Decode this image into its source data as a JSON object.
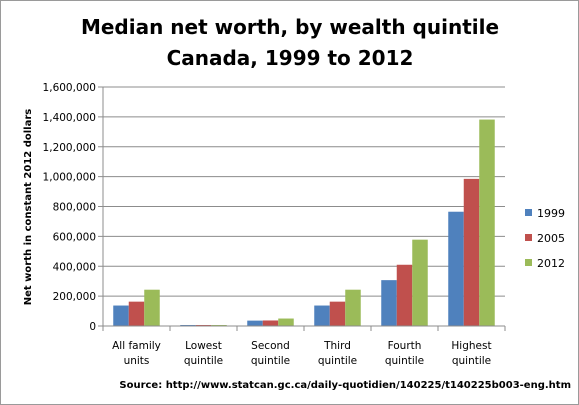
{
  "chart_data": {
    "type": "bar",
    "title_lines": [
      "Median net worth,  by wealth quintile",
      "Canada, 1999 to 2012"
    ],
    "ylabel": "Net worth in constant 2012 dollars",
    "xlabel": "",
    "ylim": [
      0,
      1600000
    ],
    "y_ticks": [
      0,
      200000,
      400000,
      600000,
      800000,
      1000000,
      1200000,
      1400000,
      1600000
    ],
    "y_tick_labels": [
      "0",
      "200,000",
      "400,000",
      "600,000",
      "800,000",
      "1,000,000",
      "1,200,000",
      "1,400,000",
      "1,600,000"
    ],
    "categories": [
      [
        "All family",
        "units"
      ],
      [
        "Lowest",
        "quintile"
      ],
      [
        "Second",
        "quintile"
      ],
      [
        "Third",
        "quintile"
      ],
      [
        "Fourth",
        "quintile"
      ],
      [
        "Highest",
        "quintile"
      ]
    ],
    "series": [
      {
        "name": "1999",
        "color": "#4f81bd",
        "values": [
          137000,
          1000,
          36000,
          137000,
          307000,
          765000
        ]
      },
      {
        "name": "2005",
        "color": "#c0504d",
        "values": [
          163000,
          1000,
          37000,
          163000,
          410000,
          985000
        ]
      },
      {
        "name": "2012",
        "color": "#9bbb59",
        "values": [
          243000,
          1000,
          50000,
          243000,
          578000,
          1382000
        ]
      }
    ],
    "grid": true,
    "legend_position": "right",
    "source": "Source: http://www.statcan.gc.ca/daily-quotidien/140225/t140225b003-eng.htm"
  }
}
